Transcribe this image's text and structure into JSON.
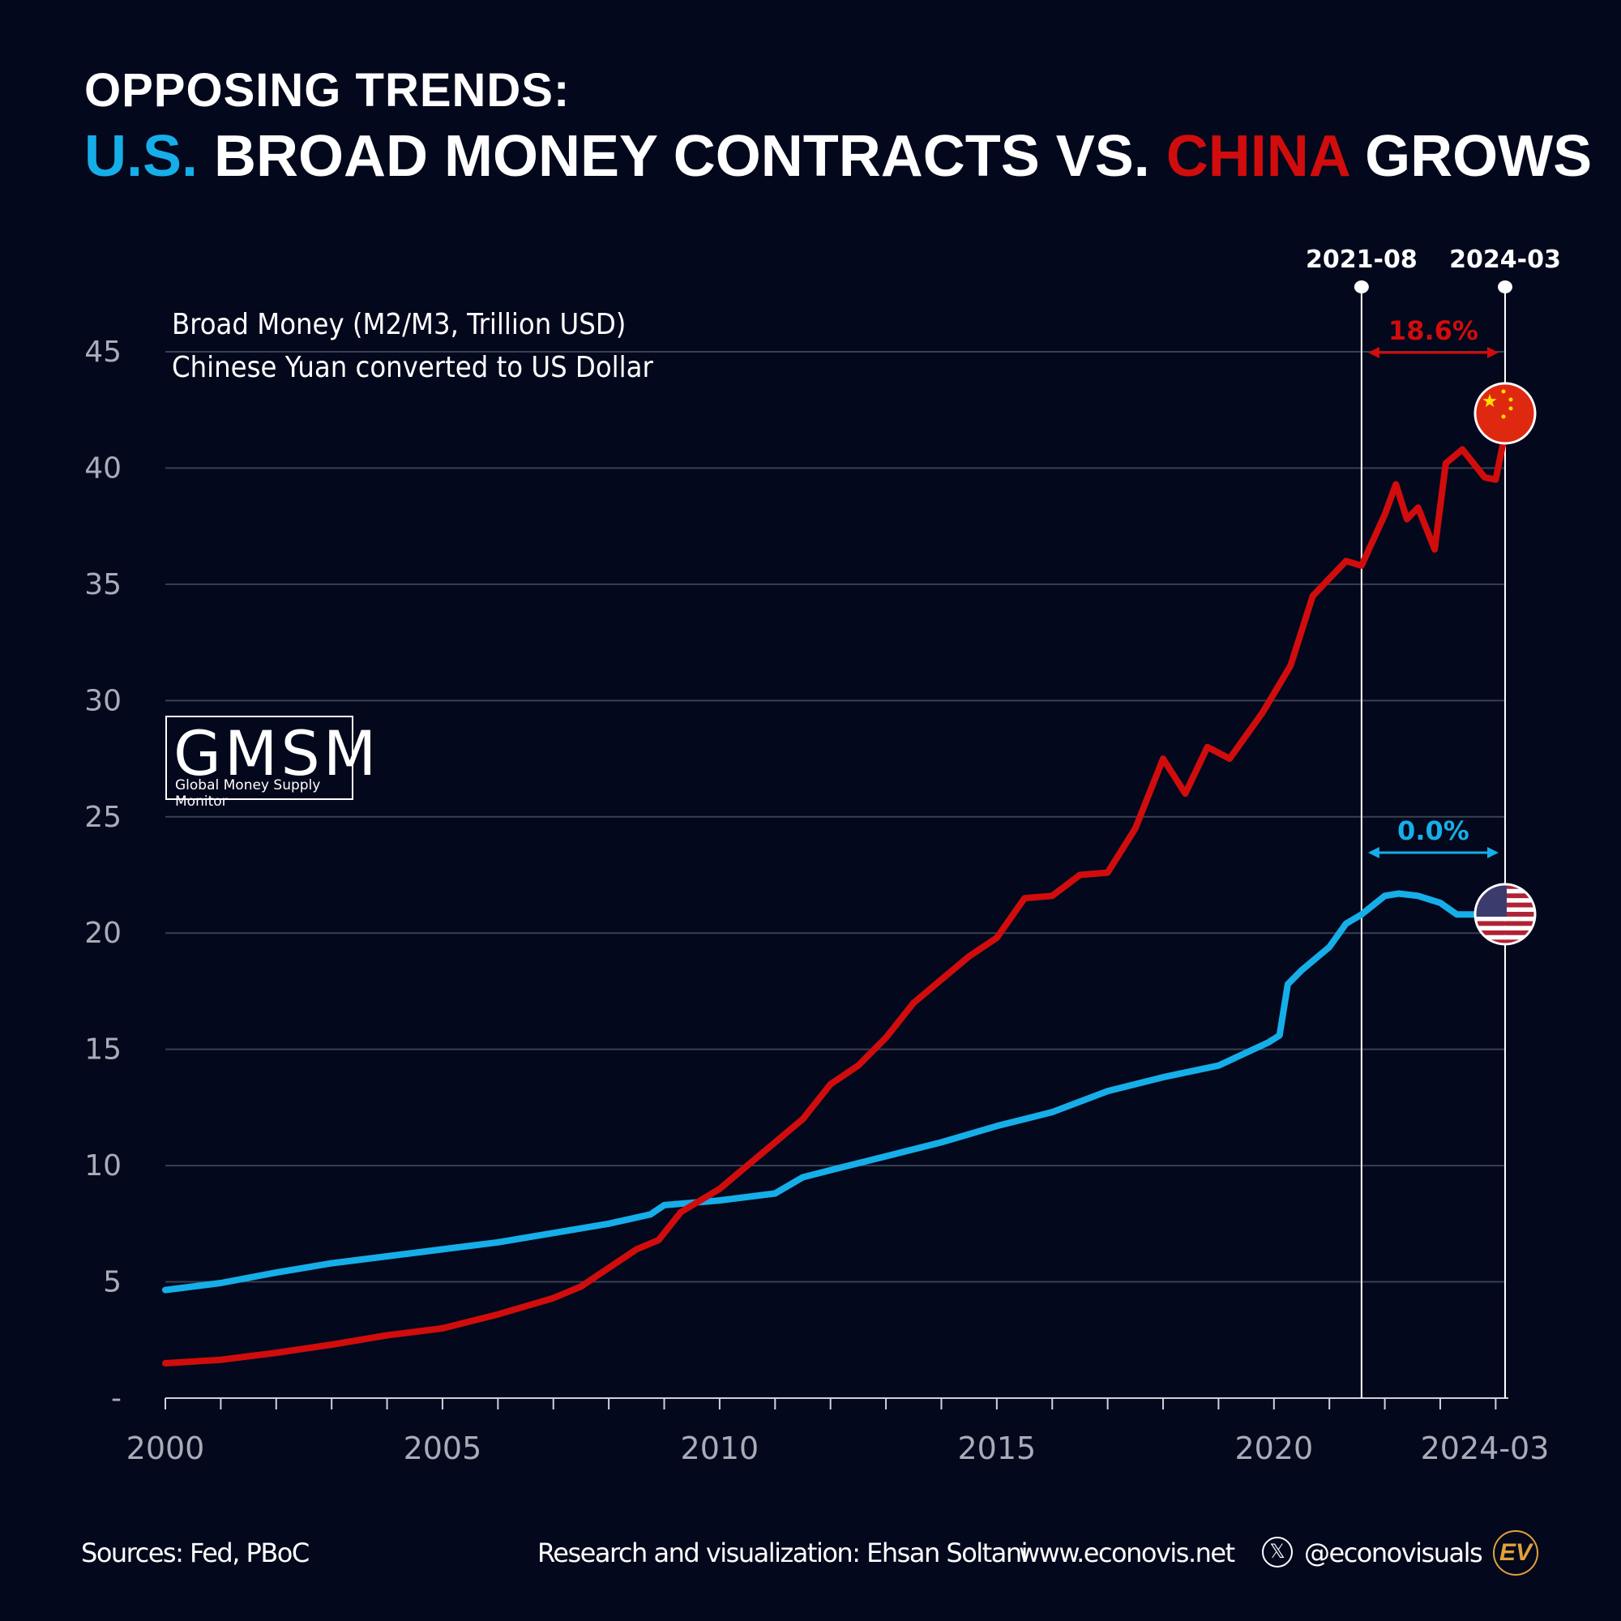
{
  "title": {
    "line1": "OPPOSING TRENDS:",
    "us": "U.S.",
    "mid": "BROAD MONEY CONTRACTS VS.",
    "china": "CHINA",
    "end": "GROWS"
  },
  "subtitle": {
    "line1": "Broad Money (M2/M3, Trillion USD)",
    "line2": "Chinese Yuan converted to US Dollar"
  },
  "logo": {
    "big": "GMSM",
    "small": "Global Money Supply Monitor"
  },
  "footer": {
    "sources": "Sources: Fed, PBoC",
    "credit": "Research and visualization: Ehsan Soltani",
    "website": "www.econovis.net",
    "handle": "@econovisuals",
    "x_icon": "x-logo-icon",
    "ev_logo": "EV"
  },
  "colors": {
    "us": "#16aee8",
    "china": "#d10c0c",
    "background": "#03081c",
    "grid": "#3a3f52"
  },
  "chart_data": {
    "type": "line",
    "title": "OPPOSING TRENDS: U.S. BROAD MONEY CONTRACTS VS. CHINA GROWS",
    "ylabel": "Broad Money (M2/M3, Trillion USD)",
    "xlim": [
      2000,
      2024.17
    ],
    "ylim": [
      0,
      45
    ],
    "yticks": [
      0,
      5,
      10,
      15,
      20,
      25,
      30,
      35,
      40,
      45
    ],
    "ytick_labels": [
      "-",
      "5",
      "10",
      "15",
      "20",
      "25",
      "30",
      "35",
      "40",
      "45"
    ],
    "xticks": [
      2000,
      2005,
      2010,
      2015,
      2020,
      2024.17
    ],
    "xtick_labels": [
      "2000",
      "2005",
      "2010",
      "2015",
      "2020",
      "2024-03"
    ],
    "grid": true,
    "markers": [
      {
        "label": "2021-08",
        "x": 2021.58
      },
      {
        "label": "2024-03",
        "x": 2024.17
      }
    ],
    "annotations": [
      {
        "series": "china",
        "text": "18.6%",
        "y": 45
      },
      {
        "series": "us",
        "text": "0.0%",
        "y": 23.5
      }
    ],
    "series": [
      {
        "id": "us",
        "flag": "us-flag-icon",
        "color": "#16aee8",
        "x": [
          2000,
          2001,
          2002,
          2003,
          2004,
          2005,
          2006,
          2007,
          2008,
          2008.75,
          2009,
          2010,
          2011,
          2011.5,
          2012,
          2013,
          2014,
          2015,
          2016,
          2017,
          2018,
          2019,
          2019.9,
          2020.1,
          2020.25,
          2020.5,
          2021,
          2021.3,
          2021.58,
          2022,
          2022.25,
          2022.6,
          2023,
          2023.3,
          2023.7,
          2024.17
        ],
        "y": [
          4.65,
          4.95,
          5.4,
          5.8,
          6.1,
          6.4,
          6.7,
          7.1,
          7.5,
          7.9,
          8.3,
          8.5,
          8.8,
          9.5,
          9.8,
          10.4,
          11.0,
          11.7,
          12.3,
          13.2,
          13.8,
          14.3,
          15.3,
          15.6,
          17.8,
          18.4,
          19.4,
          20.4,
          20.8,
          21.6,
          21.7,
          21.6,
          21.3,
          20.8,
          20.8,
          20.8
        ]
      },
      {
        "id": "china",
        "flag": "china-flag-icon",
        "color": "#d10c0c",
        "x": [
          2000,
          2001,
          2002,
          2003,
          2004,
          2005,
          2006,
          2007,
          2007.5,
          2008,
          2008.5,
          2008.9,
          2009.3,
          2010,
          2010.5,
          2011,
          2011.5,
          2012,
          2012.5,
          2013,
          2013.5,
          2014,
          2014.5,
          2015,
          2015.5,
          2016,
          2016.5,
          2017,
          2017.5,
          2018,
          2018.4,
          2018.8,
          2019.2,
          2019.8,
          2020.3,
          2020.7,
          2021.3,
          2021.58,
          2022,
          2022.2,
          2022.4,
          2022.6,
          2022.9,
          2023.1,
          2023.4,
          2023.8,
          2024.0,
          2024.17
        ],
        "y": [
          1.5,
          1.65,
          1.95,
          2.3,
          2.7,
          3.0,
          3.6,
          4.3,
          4.8,
          5.6,
          6.4,
          6.8,
          8.0,
          9.0,
          10.0,
          11.0,
          12.0,
          13.5,
          14.3,
          15.5,
          17.0,
          18.0,
          19.0,
          19.8,
          21.5,
          21.6,
          22.5,
          22.6,
          24.5,
          27.5,
          26.0,
          28.0,
          27.5,
          29.5,
          31.5,
          34.5,
          36.0,
          35.8,
          38.0,
          39.3,
          37.8,
          38.3,
          36.5,
          40.2,
          40.8,
          39.6,
          39.5,
          41.5
        ]
      }
    ]
  }
}
